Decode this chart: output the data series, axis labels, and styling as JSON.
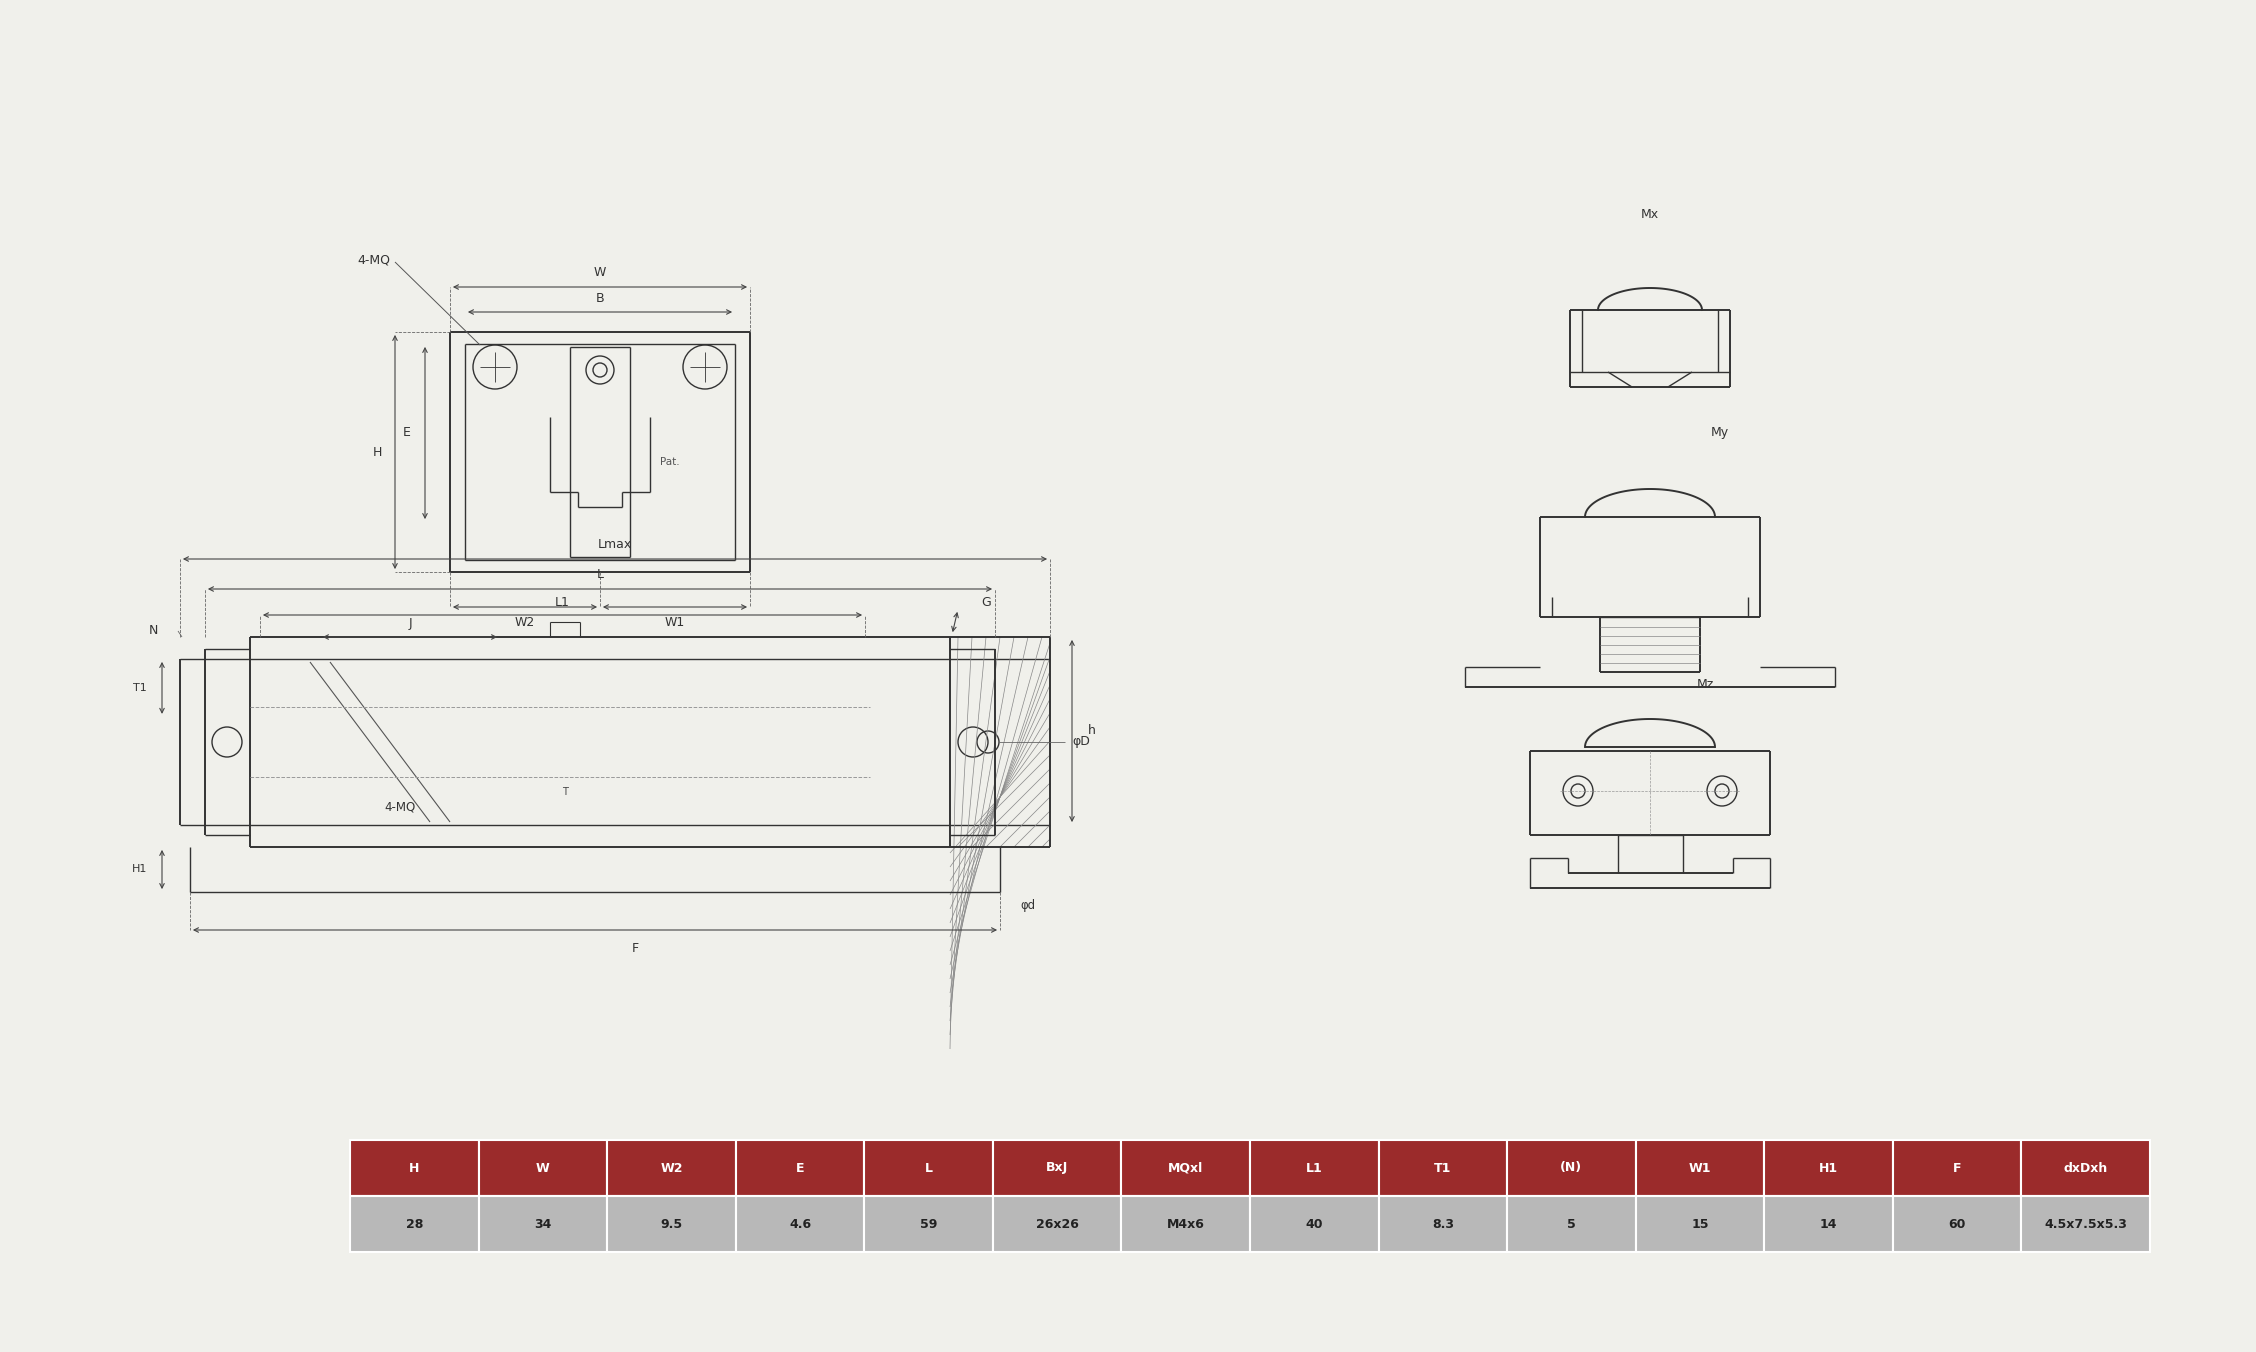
{
  "bg_color": "#f0f0eb",
  "line_color": "#333333",
  "table_header_color": "#9b2b2b",
  "table_header_text_color": "#ffffff",
  "table_data_color": "#b8b8b8",
  "table_data_text_color": "#222222",
  "table_headers": [
    "H",
    "W",
    "W2",
    "E",
    "L",
    "BxJ",
    "MQxl",
    "L1",
    "T1",
    "(N)",
    "W1",
    "H1",
    "F",
    "dxDxh"
  ],
  "table_values": [
    "28",
    "34",
    "9.5",
    "4.6",
    "59",
    "26x26",
    "M4x6",
    "40",
    "8.3",
    "5",
    "15",
    "14",
    "60",
    "4.5x7.5x5.3"
  ],
  "dim_line_color": "#444444"
}
